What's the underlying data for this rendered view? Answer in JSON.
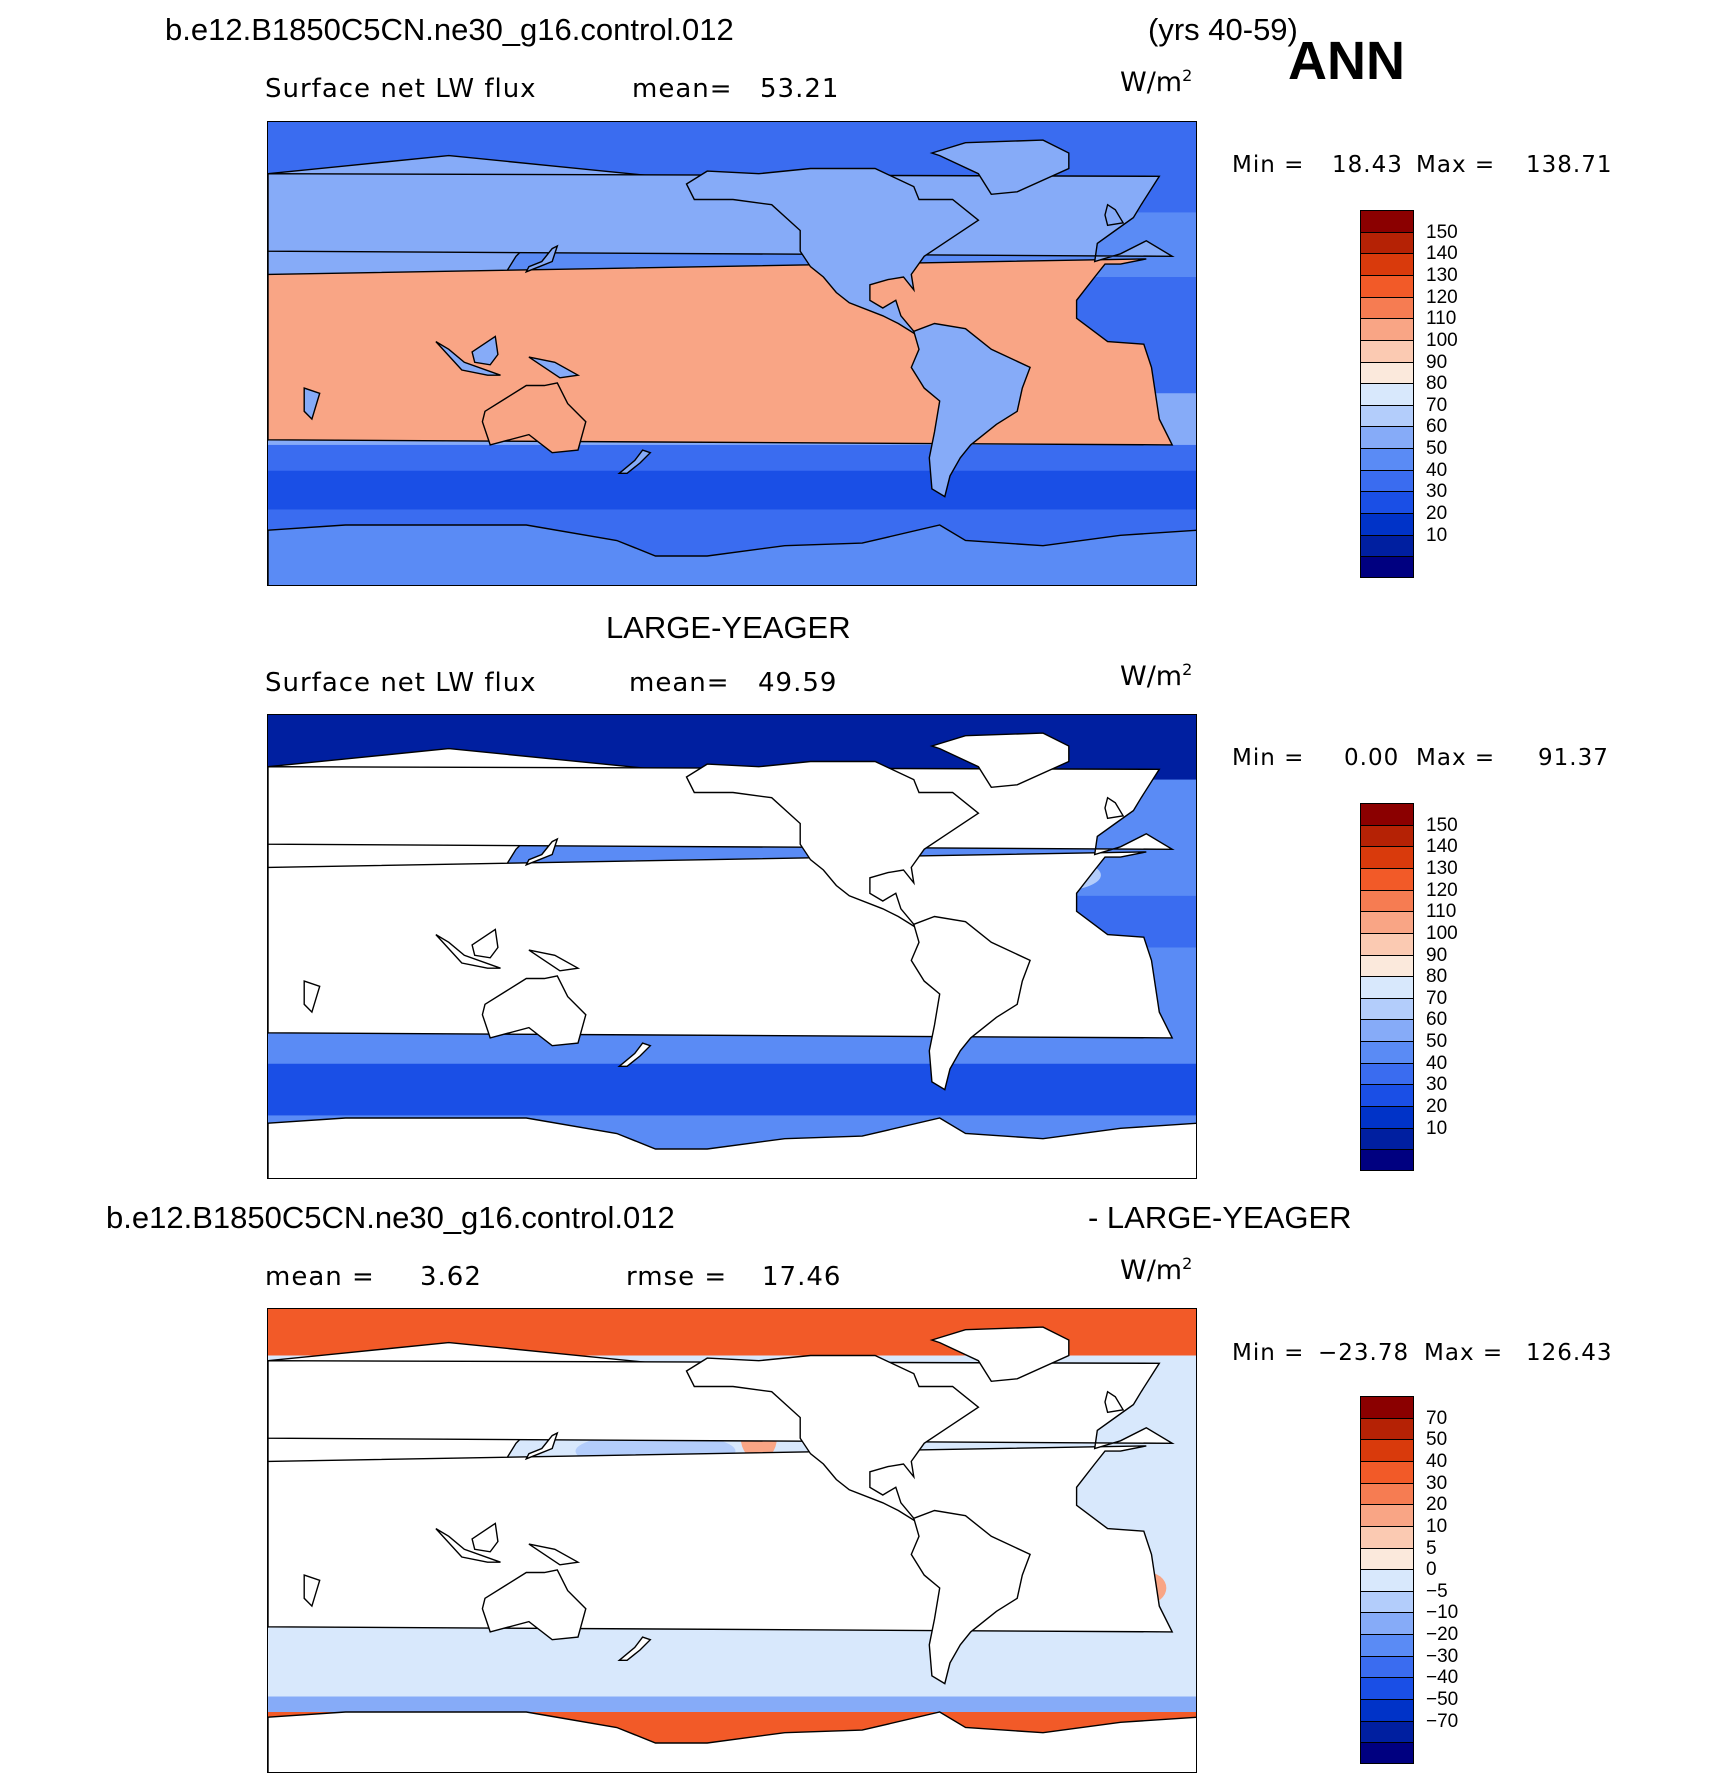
{
  "header": {
    "case_name": "b.e12.B1850C5CN.ne30_g16.control.012",
    "years": "(yrs 40-59)",
    "season": "ANN"
  },
  "panels": [
    {
      "id": "model",
      "variable": "Surface net LW flux",
      "mean_label": "mean=",
      "mean_value": "53.21",
      "units": "W/m",
      "units_exp": "2",
      "min_label": "Min  =",
      "min_value": "18.43",
      "max_label": "Max  =",
      "max_value": "138.71",
      "fill_mode": "global"
    },
    {
      "id": "obs",
      "title": "LARGE-YEAGER",
      "variable": "Surface net LW flux",
      "mean_label": "mean=",
      "mean_value": "49.59",
      "units": "W/m",
      "units_exp": "2",
      "min_label": "Min  =",
      "min_value": "0.00",
      "max_label": "Max  =",
      "max_value": "91.37",
      "fill_mode": "ocean"
    },
    {
      "id": "diff",
      "title_left": "b.e12.B1850C5CN.ne30_g16.control.012",
      "title_right": "- LARGE-YEAGER",
      "mean_label": "mean =",
      "mean_value": "3.62",
      "rmse_label": "rmse =",
      "rmse_value": "17.46",
      "units": "W/m",
      "units_exp": "2",
      "min_label": "Min  =",
      "min_value": "−23.78",
      "max_label": "Max  =",
      "max_value": "126.43",
      "fill_mode": "diff"
    }
  ],
  "colorbars": {
    "flux": {
      "colors": [
        "#000080",
        "#001fa0",
        "#0033c8",
        "#1a4fe6",
        "#3a6cf0",
        "#5a8bf5",
        "#86abf8",
        "#b3cdfb",
        "#d8e8fc",
        "#fbe9dc",
        "#fbcab2",
        "#f9a585",
        "#f67c52",
        "#f25a28",
        "#d93a0c",
        "#b52205",
        "#8b0000"
      ],
      "labels": [
        "150",
        "140",
        "130",
        "120",
        "110",
        "100",
        "90",
        "80",
        "70",
        "60",
        "50",
        "40",
        "30",
        "20",
        "10"
      ]
    },
    "diff": {
      "colors": [
        "#000080",
        "#001fa0",
        "#0033c8",
        "#1a4fe6",
        "#3a6cf0",
        "#5a8bf5",
        "#86abf8",
        "#b3cdfb",
        "#d8e8fc",
        "#fbe9dc",
        "#fbcab2",
        "#f9a585",
        "#f67c52",
        "#f25a28",
        "#d93a0c",
        "#b52205",
        "#8b0000"
      ],
      "labels": [
        "70",
        "50",
        "40",
        "30",
        "20",
        "10",
        "5",
        "0",
        "−5",
        "−10",
        "−20",
        "−30",
        "−40",
        "−50",
        "−70"
      ]
    }
  }
}
